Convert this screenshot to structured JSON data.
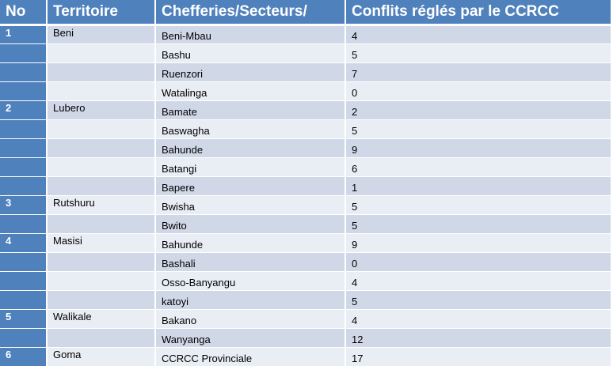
{
  "headers": {
    "no": "No",
    "territoire": "Territoire",
    "chefferies": "Chefferies/Secteurs/",
    "conflits": "Conflits réglés par le CCRCC"
  },
  "rows": [
    {
      "no": "1",
      "territoire": "Beni",
      "chefferie": "Beni-Mbau",
      "conflits": "4"
    },
    {
      "no": "",
      "territoire": "",
      "chefferie": "Bashu",
      "conflits": "5"
    },
    {
      "no": "",
      "territoire": "",
      "chefferie": "Ruenzori",
      "conflits": "7"
    },
    {
      "no": "",
      "territoire": "",
      "chefferie": "Watalinga",
      "conflits": "0"
    },
    {
      "no": "2",
      "territoire": "Lubero",
      "chefferie": "Bamate",
      "conflits": "2"
    },
    {
      "no": "",
      "territoire": "",
      "chefferie": "Baswagha",
      "conflits": "5"
    },
    {
      "no": "",
      "territoire": "",
      "chefferie": "Bahunde",
      "conflits": "9"
    },
    {
      "no": "",
      "territoire": "",
      "chefferie": "Batangi",
      "conflits": "6"
    },
    {
      "no": "",
      "territoire": "",
      "chefferie": "Bapere",
      "conflits": "1"
    },
    {
      "no": "3",
      "territoire": "Rutshuru",
      "chefferie": "Bwisha",
      "conflits": "5"
    },
    {
      "no": "",
      "territoire": "",
      "chefferie": "Bwito",
      "conflits": "5"
    },
    {
      "no": "4",
      "territoire": "Masisi",
      "chefferie": "Bahunde",
      "conflits": "9"
    },
    {
      "no": "",
      "territoire": "",
      "chefferie": "Bashali",
      "conflits": "0"
    },
    {
      "no": "",
      "territoire": "",
      "chefferie": "Osso-Banyangu",
      "conflits": "4"
    },
    {
      "no": "",
      "territoire": "",
      "chefferie": "katoyi",
      "conflits": "5"
    },
    {
      "no": "5",
      "territoire": "Walikale",
      "chefferie": "Bakano",
      "conflits": "4"
    },
    {
      "no": "",
      "territoire": "",
      "chefferie": "Wanyanga",
      "conflits": "12"
    },
    {
      "no": "6",
      "territoire": "Goma",
      "chefferie": "CCRCC Provinciale",
      "conflits": "17"
    }
  ],
  "colors": {
    "header": "#4f81bd",
    "row_dark": "#d0d8e8",
    "row_light": "#e9edf4"
  }
}
